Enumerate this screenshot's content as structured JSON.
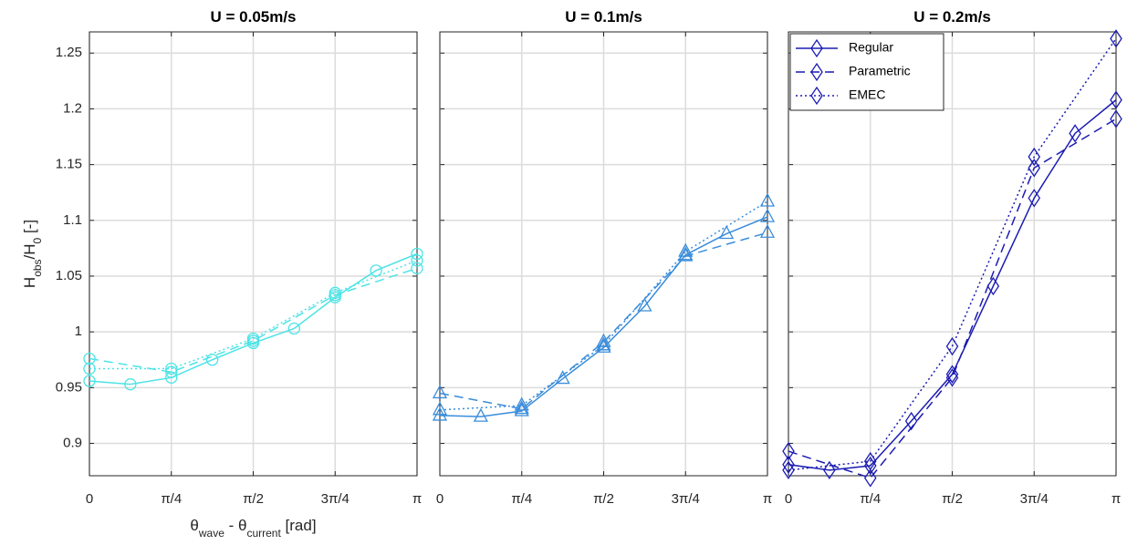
{
  "chart_data": [
    {
      "type": "line",
      "title": "U = 0.05m/s",
      "xlabel": [
        {
          "text": "θ"
        },
        {
          "text": "wave",
          "sub": true
        },
        {
          "text": " - θ"
        },
        {
          "text": "current",
          "sub": true
        },
        {
          "text": " [rad]"
        }
      ],
      "ylabel": [
        {
          "text": "H"
        },
        {
          "text": "obs",
          "sub": true
        },
        {
          "text": "/H"
        },
        {
          "text": "0",
          "sub": true
        },
        {
          "text": " [-]"
        }
      ],
      "marker": "circle",
      "grid": true,
      "ytick_labels": true,
      "xlim": [
        0,
        3.1416
      ],
      "ylim": [
        0.871,
        1.269
      ],
      "xticks": [
        {
          "value": 0,
          "label": "0"
        },
        {
          "value": 0.7854,
          "label": "π/4"
        },
        {
          "value": 1.5708,
          "label": "π/2"
        },
        {
          "value": 2.3562,
          "label": "3π/4"
        },
        {
          "value": 3.1416,
          "label": "π"
        }
      ],
      "yticks": [
        0.9,
        0.95,
        1,
        1.05,
        1.1,
        1.15,
        1.2,
        1.25
      ],
      "series": [
        {
          "color": "#4de3e6",
          "linestyle": "solid",
          "x": [
            0,
            0.3927,
            0.7854,
            1.1781,
            1.5708,
            1.9635,
            2.3562,
            2.7489,
            3.1416
          ],
          "values": [
            0.956,
            0.953,
            0.959,
            0.975,
            0.99,
            1.003,
            1.031,
            1.055,
            1.07
          ]
        },
        {
          "color": "#4de3e6",
          "linestyle": "dashed",
          "x": [
            0,
            0.7854,
            1.5708,
            2.3562,
            3.1416
          ],
          "values": [
            0.976,
            0.964,
            0.992,
            1.033,
            1.057
          ]
        },
        {
          "color": "#4de3e6",
          "linestyle": "dotted",
          "x": [
            0,
            0.7854,
            1.5708,
            2.3562,
            3.1416
          ],
          "values": [
            0.967,
            0.967,
            0.994,
            1.035,
            1.064
          ]
        }
      ]
    },
    {
      "type": "line",
      "title": "U = 0.1m/s",
      "marker": "triangle",
      "grid": true,
      "ytick_labels": false,
      "xlim": [
        0,
        3.1416
      ],
      "ylim": [
        0.871,
        1.269
      ],
      "xticks": [
        {
          "value": 0,
          "label": "0"
        },
        {
          "value": 0.7854,
          "label": "π/4"
        },
        {
          "value": 1.5708,
          "label": "π/2"
        },
        {
          "value": 2.3562,
          "label": "3π/4"
        },
        {
          "value": 3.1416,
          "label": "π"
        }
      ],
      "yticks": [
        0.9,
        0.95,
        1,
        1.05,
        1.1,
        1.15,
        1.2,
        1.25
      ],
      "series": [
        {
          "color": "#3a8ddb",
          "linestyle": "solid",
          "x": [
            0,
            0.3927,
            0.7854,
            1.1781,
            1.5708,
            1.9635,
            2.3562,
            2.7489,
            3.1416
          ],
          "values": [
            0.925,
            0.924,
            0.929,
            0.958,
            0.986,
            1.023,
            1.069,
            1.088,
            1.103
          ]
        },
        {
          "color": "#3a8ddb",
          "linestyle": "dashed",
          "x": [
            0,
            0.7854,
            1.5708,
            2.3562,
            3.1416
          ],
          "values": [
            0.945,
            0.931,
            0.991,
            1.068,
            1.089
          ]
        },
        {
          "color": "#3a8ddb",
          "linestyle": "dotted",
          "x": [
            0,
            0.7854,
            1.5708,
            2.3562,
            3.1416
          ],
          "values": [
            0.93,
            0.934,
            0.988,
            1.072,
            1.117
          ]
        }
      ]
    },
    {
      "type": "line",
      "title": "U = 0.2m/s",
      "marker": "diamond",
      "grid": true,
      "ytick_labels": false,
      "legend": "upper left",
      "xlim": [
        0,
        3.1416
      ],
      "ylim": [
        0.871,
        1.269
      ],
      "xticks": [
        {
          "value": 0,
          "label": "0"
        },
        {
          "value": 0.7854,
          "label": "π/4"
        },
        {
          "value": 1.5708,
          "label": "π/2"
        },
        {
          "value": 2.3562,
          "label": "3π/4"
        },
        {
          "value": 3.1416,
          "label": "π"
        }
      ],
      "yticks": [
        0.9,
        0.95,
        1,
        1.05,
        1.1,
        1.15,
        1.2,
        1.25
      ],
      "series": [
        {
          "name": "Regular",
          "color": "#1b1bb3",
          "linestyle": "solid",
          "x": [
            0,
            0.3927,
            0.7854,
            1.1781,
            1.5708,
            1.9635,
            2.3562,
            2.7489,
            3.1416
          ],
          "values": [
            0.881,
            0.876,
            0.88,
            0.92,
            0.962,
            1.041,
            1.12,
            1.178,
            1.208
          ]
        },
        {
          "name": "Parametric",
          "color": "#1b1bb3",
          "linestyle": "dashed",
          "x": [
            0,
            0.7854,
            1.5708,
            2.3562,
            3.1416
          ],
          "values": [
            0.893,
            0.869,
            0.959,
            1.147,
            1.191
          ]
        },
        {
          "name": "EMEC",
          "color": "#1b1bb3",
          "linestyle": "dotted",
          "x": [
            0,
            0.7854,
            1.5708,
            2.3562,
            3.1416
          ],
          "values": [
            0.876,
            0.884,
            0.987,
            1.157,
            1.263
          ]
        }
      ]
    }
  ]
}
